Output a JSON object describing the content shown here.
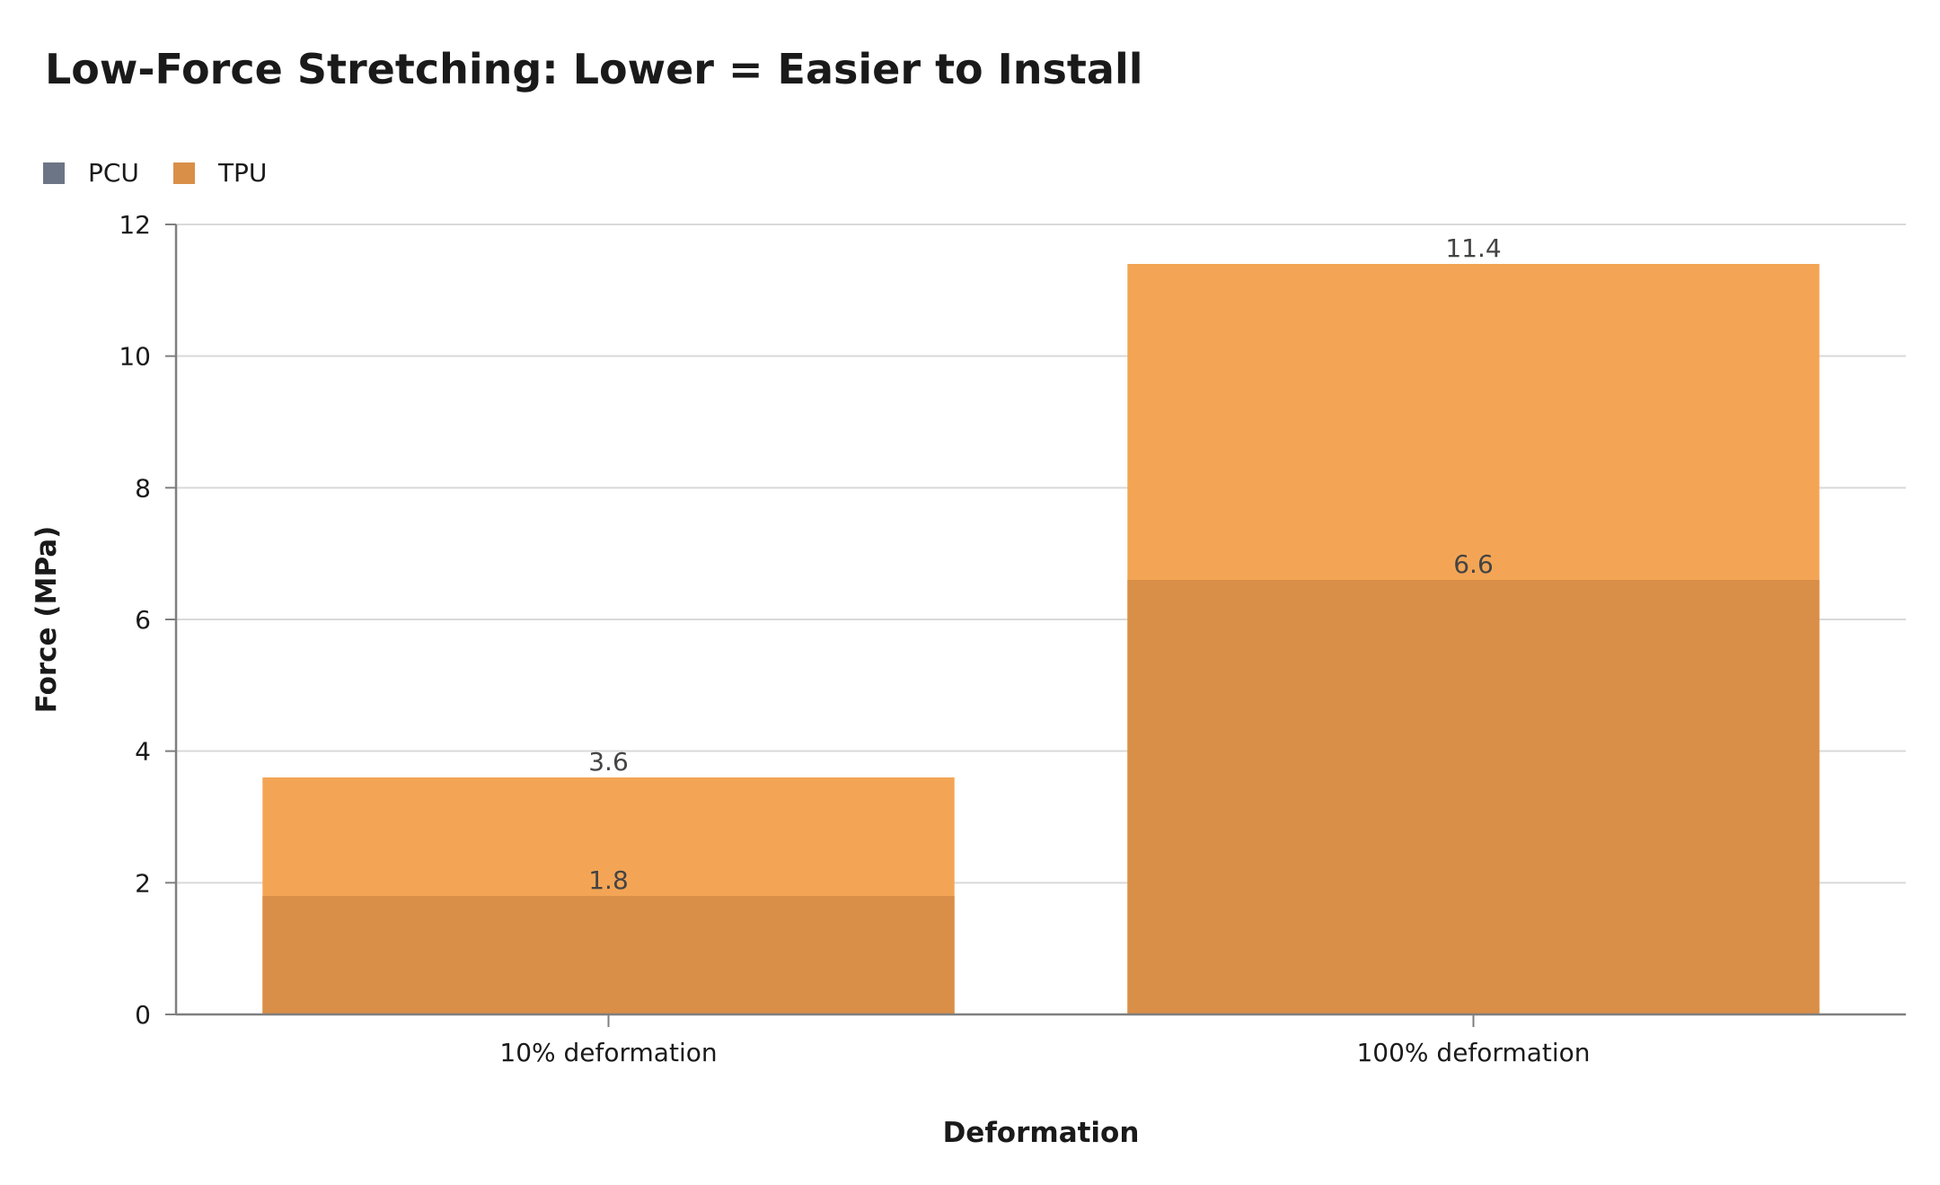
{
  "chart_data": {
    "type": "bar",
    "title": "Low-Force Stretching: Lower = Easier to Install",
    "xlabel": "Deformation",
    "ylabel": "Force (MPa)",
    "categories": [
      "10% deformation",
      "100% deformation"
    ],
    "series": [
      {
        "name": "PCU",
        "values": [
          1.8,
          6.6
        ],
        "color": "#d98f48",
        "legend_color": "#6b7585"
      },
      {
        "name": "TPU",
        "values": [
          3.6,
          11.4
        ],
        "color": "#f3a555",
        "legend_color": "#d98f48"
      }
    ],
    "ylim": [
      0,
      12
    ],
    "yticks": [
      0,
      2,
      4,
      6,
      8,
      10,
      12
    ],
    "grid": true,
    "legend_position": "top-left",
    "bars_overlap": true
  }
}
